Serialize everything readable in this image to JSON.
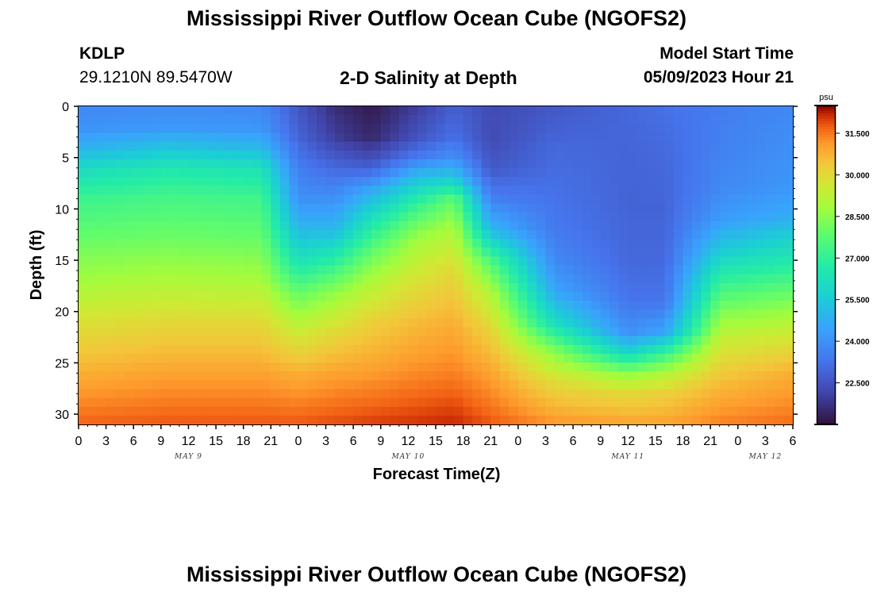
{
  "header": {
    "title": "Mississippi River Outflow Ocean Cube (NGOFS2)",
    "station_id": "KDLP",
    "coords": "29.1210N  89.5470W",
    "subtitle": "2-D Salinity at Depth",
    "model_start_label": "Model Start Time",
    "model_start_value": "05/09/2023 Hour 21"
  },
  "footer": {
    "title": "Mississippi River Outflow Ocean Cube (NGOFS2)"
  },
  "chart_data": {
    "type": "heatmap",
    "title": "2-D Salinity at Depth",
    "xlabel": "Forecast Time(Z)",
    "ylabel": "Depth (ft)",
    "x_range_hours": [
      0,
      78
    ],
    "x_tick_labels": [
      "0",
      "3",
      "6",
      "9",
      "12",
      "15",
      "18",
      "21",
      "0",
      "3",
      "6",
      "9",
      "12",
      "15",
      "18",
      "21",
      "0",
      "3",
      "6",
      "9",
      "12",
      "15",
      "18",
      "21",
      "0",
      "3",
      "6"
    ],
    "day_labels": [
      {
        "label": "MAY 9",
        "hour": 12
      },
      {
        "label": "MAY 10",
        "hour": 36
      },
      {
        "label": "MAY 11",
        "hour": 60
      },
      {
        "label": "MAY 12",
        "hour": 75
      }
    ],
    "y_range_ft": [
      0,
      31
    ],
    "y_ticks": [
      0,
      5,
      10,
      15,
      20,
      25,
      30
    ],
    "colorbar": {
      "unit": "psu",
      "min": 21.0,
      "max": 32.5,
      "tick_values": [
        22.5,
        24.0,
        25.5,
        27.0,
        28.5,
        30.0,
        31.5
      ],
      "tick_labels": [
        "22.500",
        "24.000",
        "25.500",
        "27.000",
        "28.500",
        "30.000",
        "31.500"
      ]
    },
    "salinity_profiles": [
      {
        "hour": 0,
        "depth_ft": [
          0,
          2,
          4,
          6,
          9,
          13,
          17,
          21,
          26,
          31
        ],
        "psu": [
          23.8,
          24.0,
          24.8,
          26.0,
          27.2,
          28.0,
          28.8,
          29.8,
          30.8,
          31.7
        ]
      },
      {
        "hour": 10,
        "depth_ft": [
          0,
          2,
          4,
          6,
          9,
          13,
          17,
          21,
          26,
          31
        ],
        "psu": [
          23.9,
          24.2,
          25.3,
          26.5,
          27.4,
          28.1,
          29.0,
          30.0,
          31.0,
          31.8
        ]
      },
      {
        "hour": 20,
        "depth_ft": [
          0,
          2,
          4,
          6,
          9,
          13,
          17,
          21,
          26,
          31
        ],
        "psu": [
          23.8,
          24.1,
          25.0,
          26.3,
          27.3,
          28.0,
          28.9,
          30.0,
          31.0,
          31.8
        ]
      },
      {
        "hour": 24,
        "depth_ft": [
          0,
          3,
          6,
          9,
          12,
          15,
          18,
          22,
          26,
          31
        ],
        "psu": [
          22.6,
          22.9,
          23.5,
          24.0,
          25.0,
          26.3,
          27.8,
          29.5,
          30.8,
          31.8
        ]
      },
      {
        "hour": 28,
        "depth_ft": [
          0,
          3,
          6,
          9,
          12,
          15,
          18,
          22,
          26,
          31
        ],
        "psu": [
          21.6,
          22.0,
          23.0,
          24.0,
          25.0,
          26.8,
          28.5,
          30.0,
          31.0,
          31.9
        ]
      },
      {
        "hour": 32,
        "depth_ft": [
          0,
          3,
          6,
          8,
          11,
          14,
          17,
          21,
          26,
          31
        ],
        "psu": [
          21.2,
          21.5,
          22.8,
          24.5,
          26.3,
          27.8,
          29.0,
          30.2,
          31.1,
          32.0
        ]
      },
      {
        "hour": 37,
        "depth_ft": [
          0,
          3,
          5,
          7,
          10,
          13,
          17,
          21,
          26,
          31
        ],
        "psu": [
          22.0,
          22.5,
          23.5,
          25.3,
          27.3,
          28.8,
          29.8,
          30.6,
          31.3,
          32.1
        ]
      },
      {
        "hour": 41,
        "depth_ft": [
          0,
          3,
          5,
          7,
          9,
          12,
          16,
          21,
          26,
          31
        ],
        "psu": [
          22.8,
          23.2,
          24.0,
          25.5,
          27.8,
          29.0,
          30.0,
          30.8,
          31.4,
          32.2
        ]
      },
      {
        "hour": 45,
        "depth_ft": [
          0,
          3,
          6,
          9,
          12,
          15,
          18,
          22,
          26,
          31
        ],
        "psu": [
          22.3,
          22.3,
          22.6,
          23.6,
          25.0,
          27.5,
          29.0,
          30.2,
          31.0,
          31.8
        ]
      },
      {
        "hour": 52,
        "depth_ft": [
          0,
          4,
          8,
          12,
          15,
          18,
          21,
          24,
          27,
          31
        ],
        "psu": [
          22.6,
          23.0,
          23.2,
          23.4,
          23.8,
          24.5,
          26.0,
          28.5,
          30.0,
          31.2
        ]
      },
      {
        "hour": 60,
        "depth_ft": [
          0,
          5,
          10,
          15,
          19,
          22,
          24,
          26,
          28,
          31
        ],
        "psu": [
          23.0,
          22.9,
          22.9,
          23.0,
          23.3,
          24.0,
          25.8,
          28.5,
          30.0,
          31.0
        ]
      },
      {
        "hour": 64,
        "depth_ft": [
          0,
          5,
          10,
          15,
          19,
          22,
          24,
          26,
          28,
          31
        ],
        "psu": [
          23.2,
          23.0,
          22.9,
          23.0,
          23.3,
          24.5,
          27.0,
          29.0,
          30.2,
          31.0
        ]
      },
      {
        "hour": 70,
        "depth_ft": [
          0,
          4,
          8,
          11,
          14,
          17,
          20,
          23,
          27,
          31
        ],
        "psu": [
          23.5,
          23.6,
          23.8,
          24.3,
          25.5,
          27.0,
          28.3,
          29.5,
          30.6,
          31.4
        ]
      },
      {
        "hour": 78,
        "depth_ft": [
          0,
          4,
          8,
          11,
          13,
          16,
          19,
          22,
          26,
          31
        ],
        "psu": [
          23.8,
          24.0,
          24.2,
          24.8,
          25.8,
          27.0,
          28.3,
          29.5,
          30.8,
          31.6
        ]
      }
    ]
  }
}
